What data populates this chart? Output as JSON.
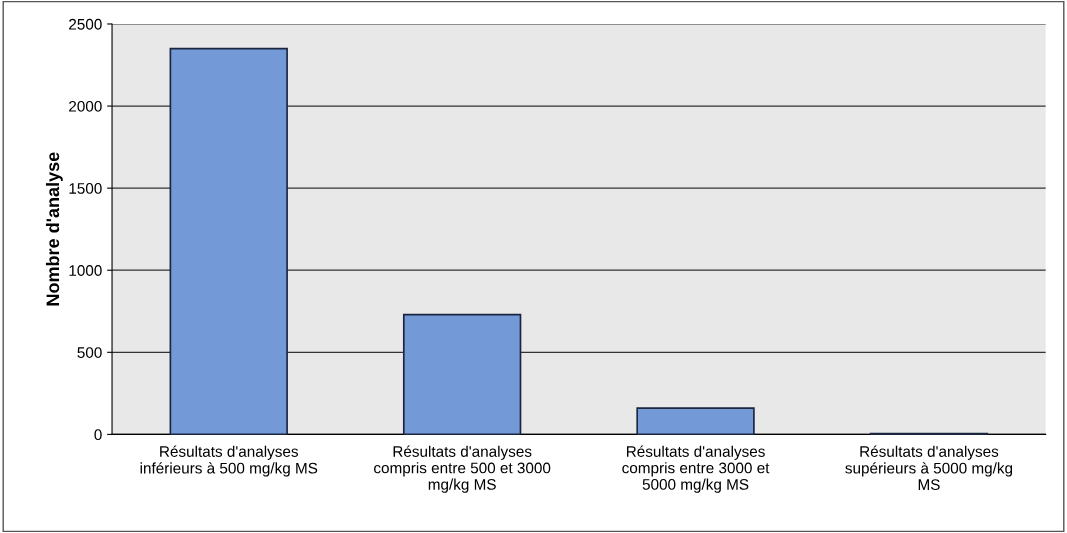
{
  "chart_data": {
    "type": "bar",
    "ylabel": "Nombre d'analyse",
    "categories": [
      "Résultats d'analyses\ninférieurs à 500 mg/kg MS",
      "Résultats d'analyses\ncompris entre 500 et 3000\nmg/kg MS",
      "Résultats d'analyses\ncompris entre 3000 et\n5000 mg/kg MS",
      "Résultats d'analyses\nsupérieurs à 5000 mg/kg\nMS"
    ],
    "values": [
      2350,
      730,
      160,
      5
    ],
    "color": "#7399d6",
    "ylim": [
      0,
      2500
    ],
    "yticks": [
      0,
      500,
      1000,
      1500,
      2000,
      2500
    ],
    "grid": "y"
  }
}
